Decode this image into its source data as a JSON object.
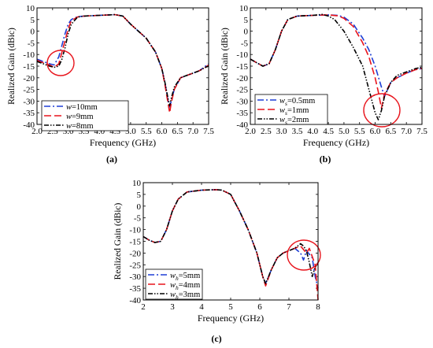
{
  "colors": {
    "blue": "#1f3fd6",
    "red": "#e8141c",
    "black": "#000000",
    "circle": "#e8141c"
  },
  "chart_data": [
    {
      "panel_label": "(a)",
      "type": "line",
      "xlabel": "Frequency (GHz)",
      "ylabel": "Realized Gain (dBic)",
      "xlim": [
        2.0,
        7.5
      ],
      "ylim": [
        -40,
        10
      ],
      "xticks": [
        "2.0",
        "2.5",
        "3.0",
        "3.5",
        "4.0",
        "4.5",
        "5.0",
        "5.5",
        "6.0",
        "6.5",
        "7.0",
        "7.5"
      ],
      "yticks": [
        "10",
        "5",
        "0",
        "-5",
        "-10",
        "-15",
        "-20",
        "-25",
        "-30",
        "-35",
        "-40"
      ],
      "legend_position": "bottom-left",
      "annotation": "red circle around the gain dip near 2.6 GHz",
      "series": [
        {
          "name": "w=10mm",
          "name_base": "w",
          "name_sub": "",
          "name_value": "=10mm",
          "style": "dashdot",
          "color": "blue",
          "x": [
            2.0,
            2.2,
            2.4,
            2.55,
            2.7,
            2.8,
            2.9,
            3.0,
            3.1,
            3.3,
            3.5,
            4.0,
            4.5,
            4.75,
            5.0,
            5.5,
            5.8,
            6.0,
            6.1,
            6.2,
            6.25,
            6.3,
            6.4,
            6.6,
            6.8,
            7.0,
            7.2,
            7.4,
            7.5
          ],
          "y": [
            -12,
            -13,
            -14,
            -14.5,
            -11,
            -6,
            -1,
            3,
            5,
            6.2,
            6.5,
            6.8,
            7.1,
            6.5,
            3,
            -3,
            -9,
            -16,
            -22,
            -30,
            -33,
            -30,
            -25,
            -20,
            -19,
            -18,
            -17,
            -15,
            -14
          ]
        },
        {
          "name": "w=9mm",
          "name_base": "w",
          "name_sub": "",
          "name_value": "=9mm",
          "style": "dash",
          "color": "red",
          "x": [
            2.0,
            2.2,
            2.4,
            2.55,
            2.7,
            2.8,
            2.9,
            3.0,
            3.1,
            3.3,
            3.5,
            4.0,
            4.5,
            4.75,
            5.0,
            5.5,
            5.8,
            6.0,
            6.1,
            6.2,
            6.25,
            6.3,
            6.4,
            6.6,
            6.8,
            7.0,
            7.2,
            7.4,
            7.5
          ],
          "y": [
            -12.5,
            -13.5,
            -14.5,
            -15.5,
            -14,
            -9,
            -4,
            1,
            4.5,
            6.1,
            6.5,
            6.8,
            7.1,
            6.5,
            3,
            -3,
            -9,
            -16,
            -23,
            -31,
            -35,
            -31,
            -25,
            -20,
            -19,
            -18,
            -17,
            -15.5,
            -14.5
          ]
        },
        {
          "name": "w=8mm",
          "name_base": "w",
          "name_sub": "",
          "name_value": "=8mm",
          "style": "dashdotdot",
          "color": "black",
          "x": [
            2.0,
            2.2,
            2.4,
            2.55,
            2.7,
            2.8,
            2.9,
            3.0,
            3.1,
            3.3,
            3.5,
            4.0,
            4.5,
            4.75,
            5.0,
            5.5,
            5.8,
            6.0,
            6.1,
            6.2,
            6.25,
            6.3,
            6.4,
            6.6,
            6.8,
            7.0,
            7.2,
            7.4,
            7.5
          ],
          "y": [
            -13,
            -14,
            -15,
            -15.5,
            -15,
            -12,
            -7,
            -1,
            3,
            6,
            6.5,
            6.8,
            7.1,
            6.5,
            3,
            -3,
            -9,
            -16,
            -22,
            -29,
            -32,
            -29,
            -24,
            -20,
            -19,
            -18,
            -17,
            -15.5,
            -15
          ]
        }
      ]
    },
    {
      "panel_label": "(b)",
      "type": "line",
      "xlabel": "Frequency (GHz)",
      "ylabel": "Realized Gain (dBic)",
      "xlim": [
        2.0,
        7.5
      ],
      "ylim": [
        -40,
        10
      ],
      "xticks": [
        "2.0",
        "2.5",
        "3.0",
        "3.5",
        "4.0",
        "4.5",
        "5.0",
        "5.5",
        "6.0",
        "6.5",
        "7.0",
        "7.5"
      ],
      "yticks": [
        "10",
        "5",
        "0",
        "-5",
        "-10",
        "-15",
        "-20",
        "-25",
        "-30",
        "-35",
        "-40"
      ],
      "legend_position": "bottom-left",
      "annotation": "red circle around the gain minima near 6.1 GHz",
      "series": [
        {
          "name": "ws=0.5mm",
          "name_base": "w",
          "name_sub": "s",
          "name_value": "=0.5mm",
          "style": "dashdot",
          "color": "blue",
          "x": [
            2.0,
            2.2,
            2.4,
            2.6,
            2.8,
            3.0,
            3.2,
            3.5,
            4.0,
            4.5,
            4.8,
            5.0,
            5.3,
            5.6,
            5.8,
            6.0,
            6.2,
            6.3,
            6.4,
            6.5,
            6.7,
            7.0,
            7.3,
            7.5
          ],
          "y": [
            -12,
            -13.5,
            -15,
            -14,
            -8,
            0,
            5,
            6.5,
            6.8,
            7,
            6.8,
            6,
            3,
            -3,
            -8,
            -15,
            -24,
            -28,
            -25,
            -22,
            -20,
            -18,
            -16.5,
            -16
          ]
        },
        {
          "name": "ws=1mm",
          "name_base": "w",
          "name_sub": "s",
          "name_value": "=1mm",
          "style": "dash",
          "color": "red",
          "x": [
            2.0,
            2.2,
            2.4,
            2.6,
            2.8,
            3.0,
            3.2,
            3.5,
            4.0,
            4.5,
            4.8,
            5.0,
            5.3,
            5.6,
            5.8,
            6.0,
            6.1,
            6.2,
            6.3,
            6.5,
            6.7,
            7.0,
            7.3,
            7.5
          ],
          "y": [
            -12,
            -13.5,
            -15,
            -14,
            -8,
            0,
            5,
            6.5,
            6.8,
            7,
            6.6,
            5.5,
            2,
            -5,
            -11,
            -20,
            -26,
            -33,
            -27,
            -22,
            -20,
            -18,
            -16.5,
            -16
          ]
        },
        {
          "name": "ws=2mm",
          "name_base": "w",
          "name_sub": "s",
          "name_value": "=2mm",
          "style": "dashdotdot",
          "color": "black",
          "x": [
            2.0,
            2.2,
            2.4,
            2.6,
            2.8,
            3.0,
            3.2,
            3.5,
            4.0,
            4.3,
            4.5,
            4.7,
            5.0,
            5.3,
            5.6,
            5.8,
            6.0,
            6.1,
            6.2,
            6.3,
            6.5,
            6.7,
            7.0,
            7.3,
            7.5
          ],
          "y": [
            -12,
            -13.5,
            -15,
            -14,
            -8,
            0,
            5,
            6.5,
            6.8,
            7.2,
            6.5,
            5,
            0,
            -7,
            -15,
            -25,
            -35,
            -38,
            -34,
            -28,
            -22,
            -19,
            -17.5,
            -16,
            -15.5
          ]
        }
      ]
    },
    {
      "panel_label": "(c)",
      "type": "line",
      "xlabel": "Frequency (GHz)",
      "ylabel": "Realized Gain (dBic)",
      "xlim": [
        2,
        8
      ],
      "ylim": [
        -40,
        10
      ],
      "xticks": [
        "2",
        "3",
        "4",
        "5",
        "6",
        "7",
        "8"
      ],
      "yticks": [
        "10",
        "5",
        "0",
        "-5",
        "-10",
        "-15",
        "-20",
        "-25",
        "-30",
        "-35",
        "-40"
      ],
      "legend_position": "bottom-left",
      "annotation": "red circle around the gain dip near 7.4 GHz",
      "series": [
        {
          "name": "wh=5mm",
          "name_base": "w",
          "name_sub": "h",
          "name_value": "=5mm",
          "style": "dashdot",
          "color": "blue",
          "x": [
            2.0,
            2.2,
            2.4,
            2.6,
            2.8,
            3.0,
            3.2,
            3.5,
            4.0,
            4.5,
            4.7,
            5.0,
            5.3,
            5.6,
            5.9,
            6.1,
            6.2,
            6.4,
            6.6,
            6.8,
            7.0,
            7.2,
            7.4,
            7.5,
            7.6,
            7.8,
            7.9,
            8.0
          ],
          "y": [
            -13,
            -14.5,
            -15.5,
            -15,
            -10,
            -2,
            3,
            6,
            6.8,
            7,
            6.8,
            5,
            -2,
            -10,
            -20,
            -30,
            -33,
            -27,
            -22,
            -20,
            -19,
            -18,
            -20,
            -23,
            -19,
            -22,
            -30,
            -35
          ]
        },
        {
          "name": "wh=4mm",
          "name_base": "w",
          "name_sub": "h",
          "name_value": "=4mm",
          "style": "dash",
          "color": "red",
          "x": [
            2.0,
            2.2,
            2.4,
            2.6,
            2.8,
            3.0,
            3.2,
            3.5,
            4.0,
            4.5,
            4.7,
            5.0,
            5.3,
            5.6,
            5.9,
            6.1,
            6.2,
            6.4,
            6.6,
            6.8,
            7.0,
            7.2,
            7.4,
            7.6,
            7.7,
            7.9,
            8.0
          ],
          "y": [
            -13,
            -14.5,
            -15.5,
            -15,
            -10,
            -2,
            3,
            6,
            6.8,
            7,
            6.8,
            5,
            -2,
            -10,
            -20,
            -30,
            -34,
            -27,
            -22,
            -20,
            -19,
            -18,
            -17,
            -20,
            -18,
            -25,
            -40
          ]
        },
        {
          "name": "wh=3mm",
          "name_base": "w",
          "name_sub": "h",
          "name_value": "=3mm",
          "style": "dashdotdot",
          "color": "black",
          "x": [
            2.0,
            2.2,
            2.4,
            2.6,
            2.8,
            3.0,
            3.2,
            3.5,
            4.0,
            4.5,
            4.7,
            5.0,
            5.3,
            5.6,
            5.9,
            6.1,
            6.2,
            6.4,
            6.6,
            6.8,
            7.0,
            7.2,
            7.4,
            7.5,
            7.6,
            7.7,
            7.8,
            7.9,
            8.0
          ],
          "y": [
            -13,
            -14.5,
            -15.5,
            -15,
            -10,
            -2,
            3,
            6,
            6.8,
            7,
            6.8,
            5,
            -2,
            -10,
            -20,
            -30,
            -33,
            -27,
            -22,
            -20,
            -19,
            -18,
            -16,
            -17,
            -19,
            -24,
            -30,
            -26,
            -24
          ]
        }
      ]
    }
  ]
}
